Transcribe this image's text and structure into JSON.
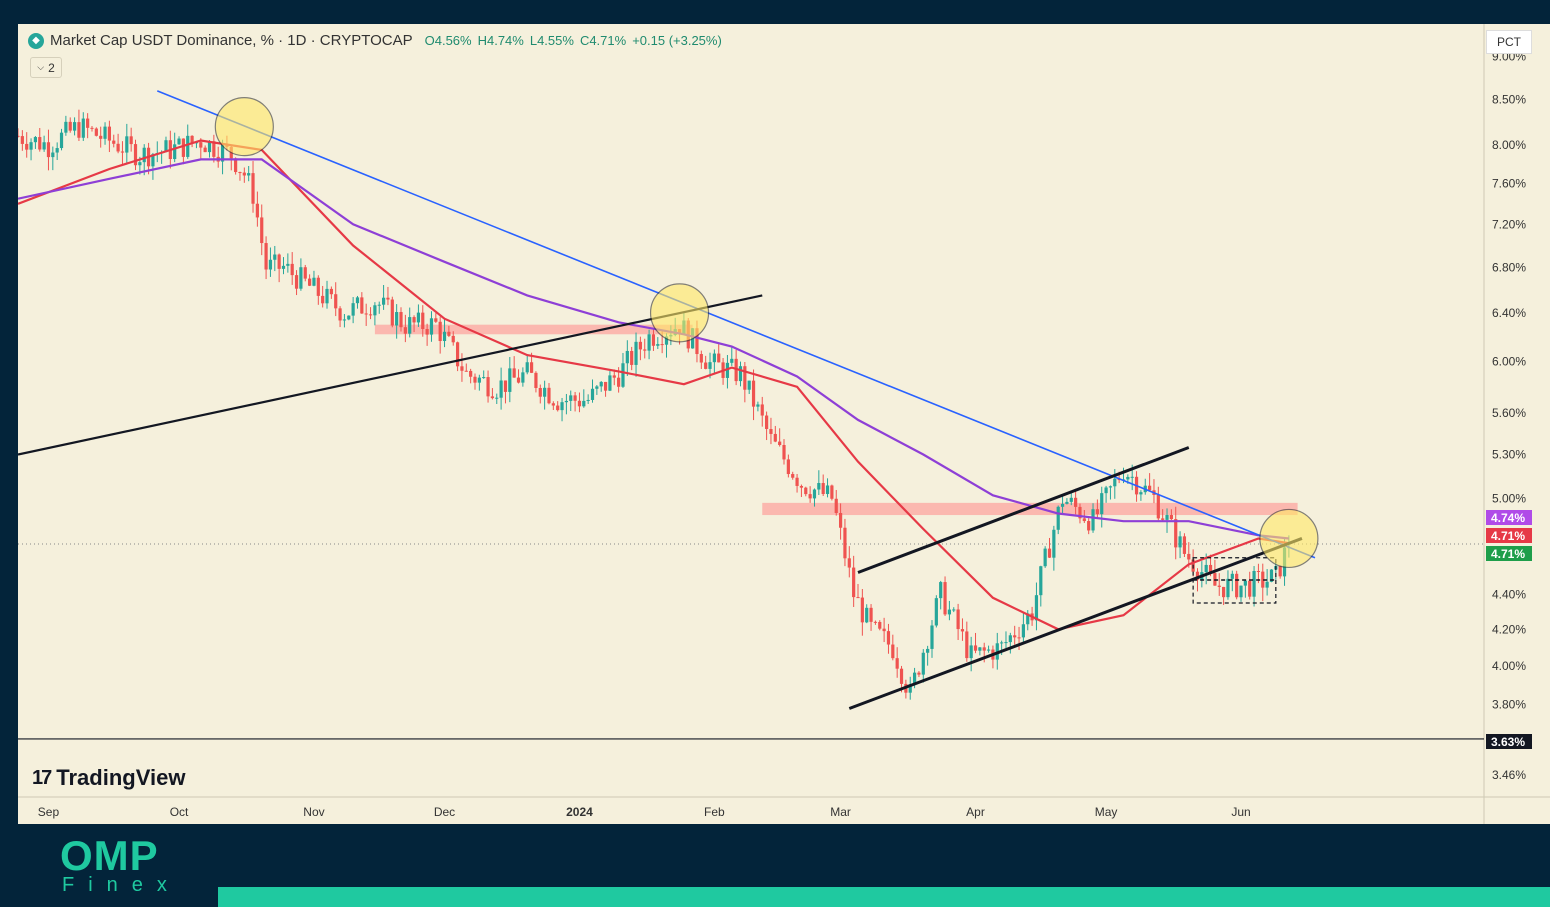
{
  "legend": {
    "title": "Market Cap USDT Dominance, % · 1D · CRYPTOCAP",
    "open": "O4.56%",
    "high": "H4.74%",
    "low": "L4.55%",
    "close": "C4.71%",
    "change": "+0.15 (+3.25%)",
    "collapse_label": "2"
  },
  "scale_button": "PCT",
  "brand": {
    "tradingview": "TradingView",
    "logo_main": "OMP",
    "logo_sub": "Finex"
  },
  "colors": {
    "background": "#f5f0dc",
    "up": "#26a69a",
    "down": "#ef5350",
    "ma_fast": "#e63946",
    "ma_slow": "#8e3fd6",
    "trendline": "#2962ff",
    "zone": "#ff8a8a",
    "accent": "#1fc9a0"
  },
  "chart_data": {
    "type": "candlestick",
    "symbol": "Market Cap USDT Dominance",
    "timeframe": "1D",
    "x_ticks": [
      "Sep",
      "Oct",
      "Nov",
      "Dec",
      "2024",
      "Feb",
      "Mar",
      "Apr",
      "May",
      "Jun"
    ],
    "y_ticks": [
      "9.00%",
      "8.50%",
      "8.00%",
      "7.60%",
      "7.20%",
      "6.80%",
      "6.40%",
      "6.00%",
      "5.60%",
      "5.30%",
      "5.00%",
      "4.40%",
      "4.20%",
      "4.00%",
      "3.80%",
      "3.46%"
    ],
    "badges": [
      {
        "label": "4.74%",
        "value": 4.74,
        "color": "#b04be8"
      },
      {
        "label": "4.71%",
        "value": 4.71,
        "color": "#e63946"
      },
      {
        "label": "4.71%",
        "value": 4.705,
        "color": "#1e9e4a"
      },
      {
        "label": "3.63%",
        "value": 3.63,
        "color": "#131722"
      }
    ],
    "ylim": [
      3.36,
      9.4
    ],
    "scale": "log",
    "ohlc": {
      "open": 4.56,
      "high": 4.74,
      "low": 4.55,
      "close": 4.71,
      "change": 0.15,
      "change_pct": 3.25
    },
    "series": [
      {
        "name": "",
        "kind": "close",
        "x": [
          "2023-08-25",
          "2023-09-01",
          "2023-09-08",
          "2023-09-15",
          "2023-09-22",
          "2023-09-29",
          "2023-10-06",
          "2023-10-13",
          "2023-10-16",
          "2023-10-18",
          "2023-10-21",
          "2023-10-25",
          "2023-11-01",
          "2023-11-08",
          "2023-11-15",
          "2023-11-22",
          "2023-11-29",
          "2023-12-06",
          "2023-12-13",
          "2023-12-20",
          "2023-12-27",
          "2024-01-03",
          "2024-01-10",
          "2024-01-17",
          "2024-01-24",
          "2024-01-31",
          "2024-02-07",
          "2024-02-14",
          "2024-02-21",
          "2024-02-28",
          "2024-03-04",
          "2024-03-08",
          "2024-03-13",
          "2024-03-17",
          "2024-03-24",
          "2024-03-31",
          "2024-04-07",
          "2024-04-14",
          "2024-04-21",
          "2024-04-28",
          "2024-05-05",
          "2024-05-12",
          "2024-05-19",
          "2024-05-26",
          "2024-06-02",
          "2024-06-09",
          "2024-06-12"
        ],
        "y": [
          8.1,
          8.0,
          8.2,
          8.05,
          7.9,
          7.95,
          8.05,
          7.9,
          7.7,
          7.5,
          6.8,
          6.8,
          6.6,
          6.4,
          6.5,
          6.3,
          6.3,
          5.9,
          5.8,
          5.9,
          5.7,
          5.7,
          5.9,
          6.2,
          6.3,
          5.98,
          5.9,
          5.4,
          5.1,
          5.0,
          4.4,
          4.2,
          4.1,
          3.85,
          4.4,
          4.05,
          4.1,
          4.3,
          5.0,
          4.85,
          5.2,
          5.0,
          4.65,
          4.45,
          4.45,
          4.5,
          4.71
        ]
      },
      {
        "name": "",
        "kind": "ma",
        "color": "#e63946",
        "x": [
          "2023-08-25",
          "2023-09-15",
          "2023-10-06",
          "2023-10-20",
          "2023-11-10",
          "2023-12-01",
          "2023-12-20",
          "2024-01-10",
          "2024-01-25",
          "2024-02-05",
          "2024-02-20",
          "2024-03-05",
          "2024-03-20",
          "2024-04-05",
          "2024-04-20",
          "2024-05-05",
          "2024-05-20",
          "2024-06-05",
          "2024-06-12"
        ],
        "y": [
          7.4,
          7.75,
          8.05,
          7.95,
          7.0,
          6.35,
          6.05,
          5.92,
          5.82,
          5.95,
          5.8,
          5.25,
          4.8,
          4.38,
          4.2,
          4.28,
          4.58,
          4.74,
          4.71
        ]
      },
      {
        "name": "",
        "kind": "ma",
        "color": "#8e3fd6",
        "x": [
          "2023-08-25",
          "2023-09-15",
          "2023-10-06",
          "2023-10-20",
          "2023-11-10",
          "2023-12-01",
          "2023-12-20",
          "2024-01-10",
          "2024-01-25",
          "2024-02-05",
          "2024-02-20",
          "2024-03-05",
          "2024-03-20",
          "2024-04-05",
          "2024-04-20",
          "2024-05-05",
          "2024-05-20",
          "2024-06-05",
          "2024-06-12"
        ],
        "y": [
          7.45,
          7.65,
          7.85,
          7.85,
          7.2,
          6.85,
          6.55,
          6.32,
          6.22,
          6.12,
          5.88,
          5.55,
          5.3,
          5.02,
          4.9,
          4.85,
          4.85,
          4.76,
          4.74
        ]
      }
    ],
    "annotations": [
      {
        "type": "trendline",
        "color": "#2962ff",
        "from": [
          "2023-09-26",
          8.6
        ],
        "to": [
          "2024-06-18",
          4.62
        ]
      },
      {
        "type": "trendline",
        "color": "#131722",
        "from": [
          "2023-08-25",
          5.3
        ],
        "to": [
          "2024-02-12",
          6.55
        ]
      },
      {
        "type": "trendline",
        "color": "#131722",
        "from": [
          "2024-03-03",
          3.78
        ],
        "to": [
          "2024-06-15",
          4.74
        ]
      },
      {
        "type": "trendline",
        "color": "#131722",
        "from": [
          "2024-03-05",
          4.53
        ],
        "to": [
          "2024-05-20",
          5.35
        ]
      },
      {
        "type": "hline",
        "color": "#131722",
        "value": 3.63
      },
      {
        "type": "zone",
        "color": "#ff8a8a",
        "from": "2023-11-15",
        "to": "2024-01-27",
        "y_low": 6.22,
        "y_high": 6.3
      },
      {
        "type": "zone",
        "color": "#ff8a8a",
        "from": "2024-02-12",
        "to": "2024-06-14",
        "y_low": 4.89,
        "y_high": 4.97
      },
      {
        "type": "range_box",
        "from": "2024-05-21",
        "to": "2024-06-09",
        "y_low": 4.35,
        "y_high": 4.62
      },
      {
        "type": "circle",
        "at": [
          "2023-10-16",
          8.2
        ]
      },
      {
        "type": "circle",
        "at": [
          "2024-01-24",
          6.4
        ]
      },
      {
        "type": "circle",
        "at": [
          "2024-06-12",
          4.74
        ]
      }
    ]
  }
}
